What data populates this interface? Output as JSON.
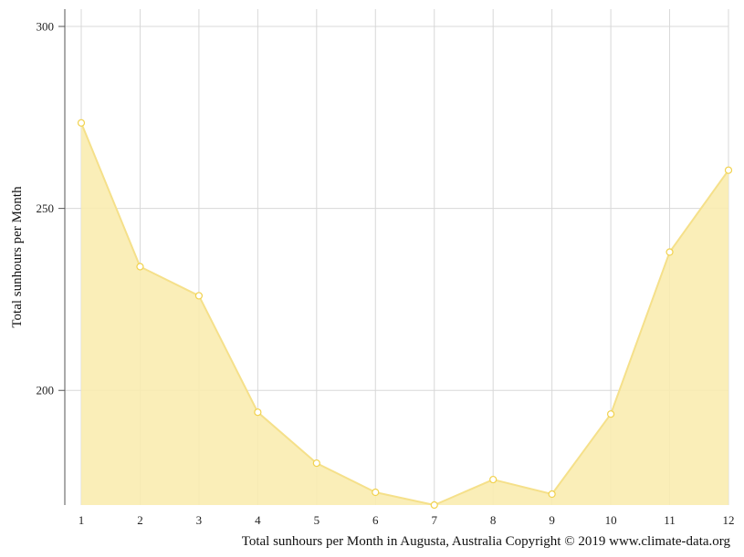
{
  "chart_data": {
    "type": "area",
    "x": [
      1,
      2,
      3,
      4,
      5,
      6,
      7,
      8,
      9,
      10,
      11,
      12
    ],
    "series": [
      {
        "values": [
          273.5,
          234,
          226,
          194,
          180,
          172,
          168.5,
          175.5,
          171.5,
          193.5,
          238,
          260.5
        ]
      }
    ],
    "x_ticks": [
      "1",
      "2",
      "3",
      "4",
      "5",
      "6",
      "7",
      "8",
      "9",
      "10",
      "11",
      "12"
    ],
    "y_ticks": [
      "200",
      "250",
      "300"
    ],
    "ylabel": "Total sunhours per Month",
    "caption": "Total sunhours per Month in Augusta, Australia Copyright © 2019 www.climate-data.org",
    "ylim": [
      168.5,
      302
    ],
    "grid": true,
    "legend": "none",
    "colors": {
      "fill": "#f9ecb0",
      "line": "#f5e08a",
      "marker_stroke": "#f1d24e",
      "grid": "#d8d8d8",
      "axis": "#555555"
    }
  }
}
